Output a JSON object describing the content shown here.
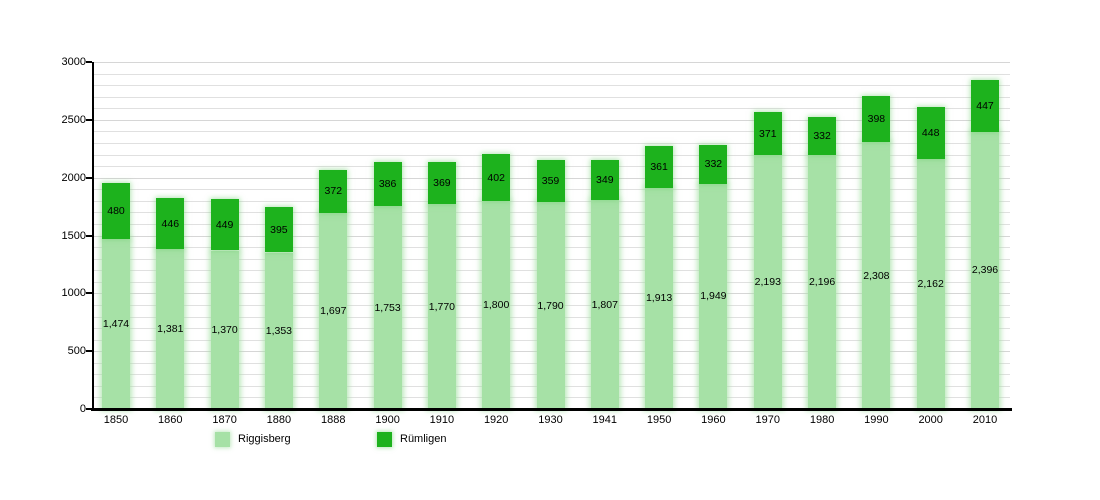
{
  "chart_data": {
    "type": "bar",
    "stacked": true,
    "title": "",
    "xlabel": "",
    "ylabel": "",
    "ylim": [
      0,
      3000
    ],
    "ytick_step": 500,
    "grid_step": 100,
    "grid": true,
    "legend_position": "bottom",
    "categories": [
      "1850",
      "1860",
      "1870",
      "1880",
      "1888",
      "1900",
      "1910",
      "1920",
      "1930",
      "1941",
      "1950",
      "1960",
      "1970",
      "1980",
      "1990",
      "2000",
      "2010"
    ],
    "series": [
      {
        "name": "Riggisberg",
        "color": "#a6e1a6",
        "values": [
          1474,
          1381,
          1370,
          1353,
          1697,
          1753,
          1770,
          1800,
          1790,
          1807,
          1913,
          1949,
          2193,
          2196,
          2308,
          2162,
          2396
        ]
      },
      {
        "name": "Rümligen",
        "color": "#1db21d",
        "values": [
          480,
          446,
          449,
          395,
          372,
          386,
          369,
          402,
          359,
          349,
          361,
          332,
          371,
          332,
          398,
          448,
          447
        ]
      }
    ],
    "yticks": [
      "0",
      "500",
      "1000",
      "1500",
      "2000",
      "2500",
      "3000"
    ],
    "value_labels_shown": true
  }
}
